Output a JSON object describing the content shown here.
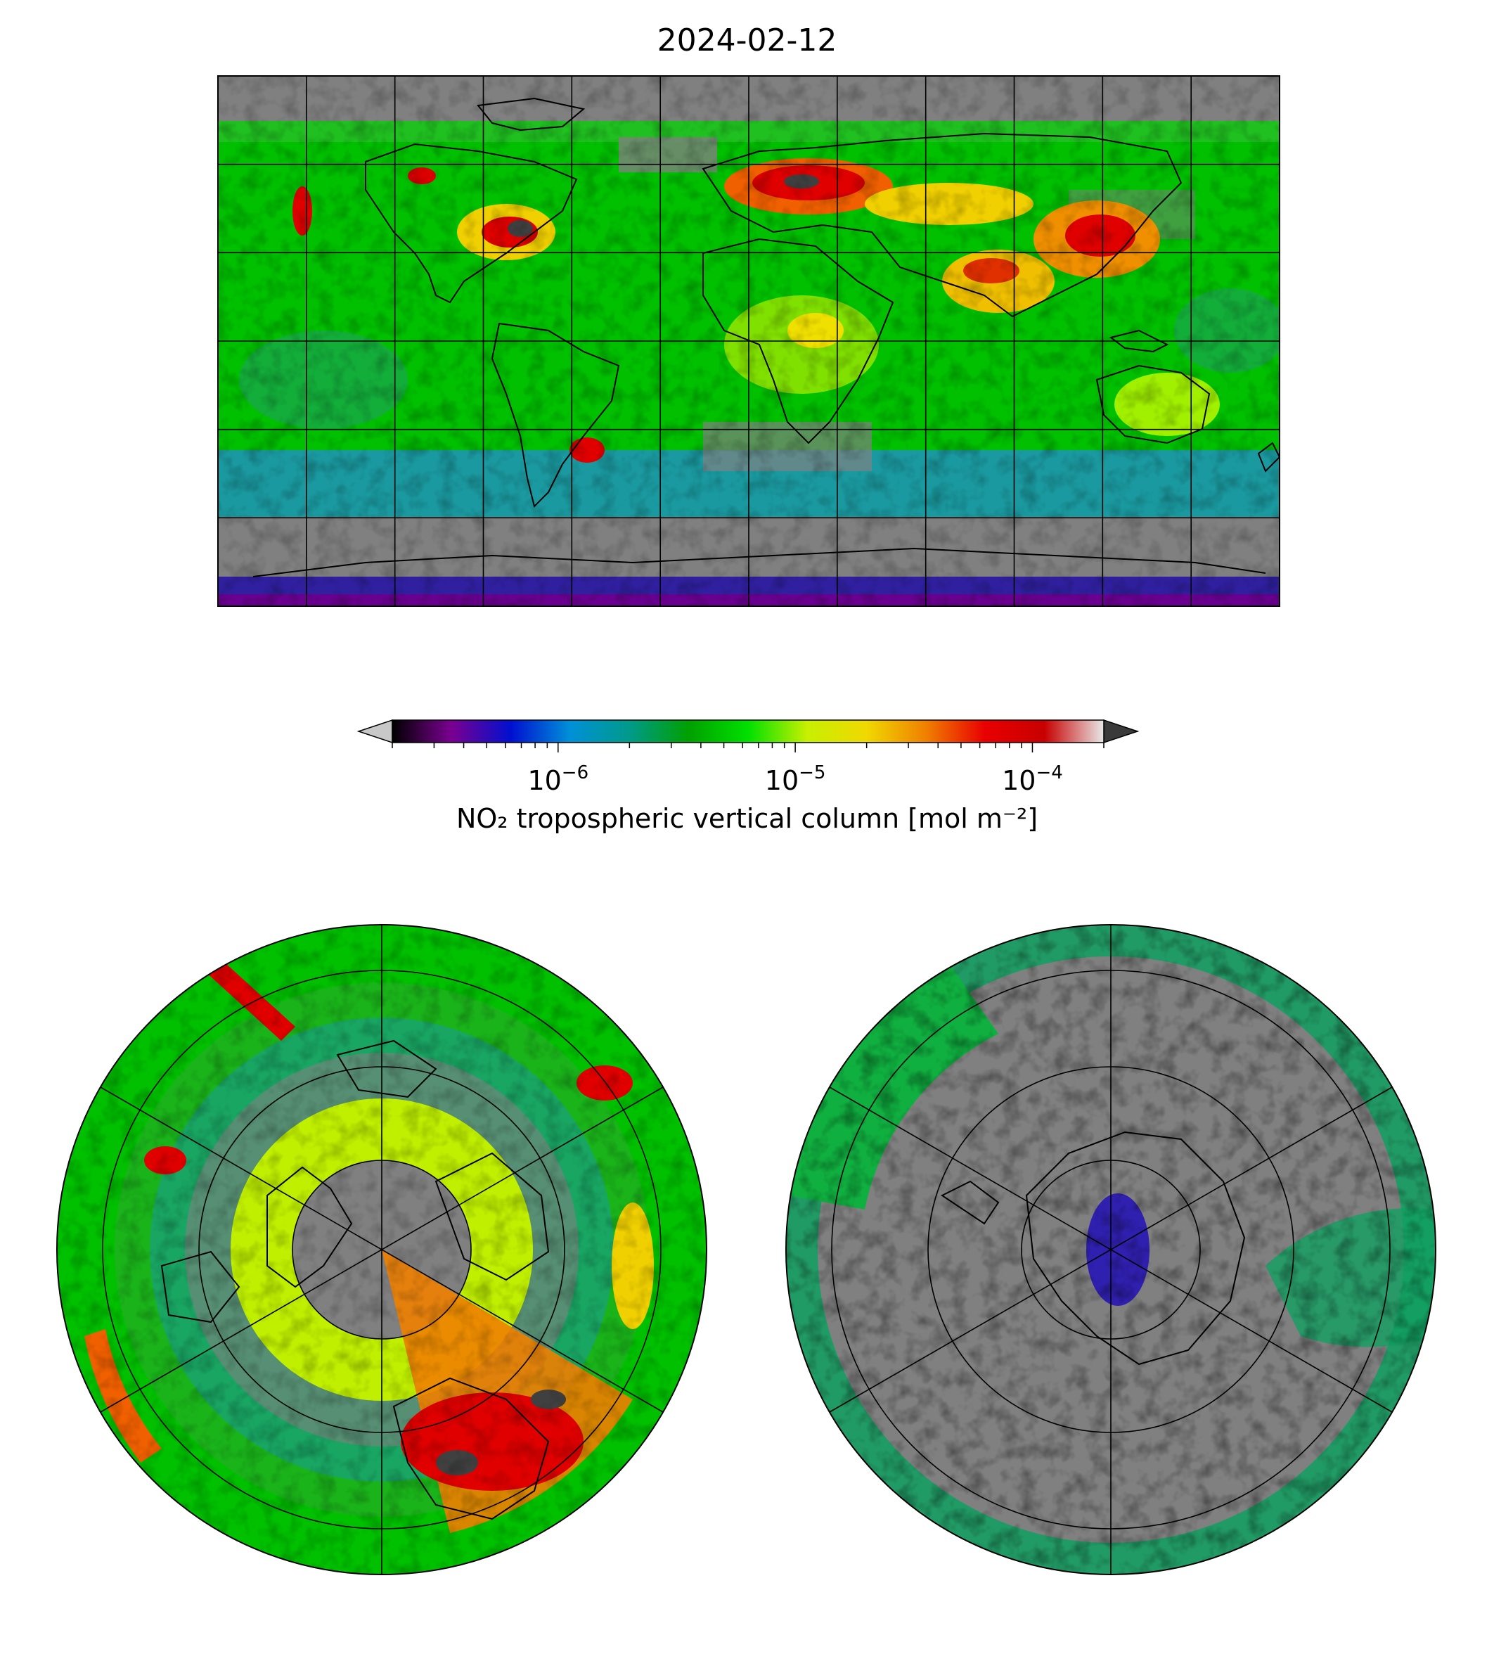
{
  "figure": {
    "title": "2024-02-12",
    "colorbar": {
      "label": "NO₂ tropospheric vertical column [mol m⁻²]",
      "scale": "log",
      "range": [
        2e-07,
        0.0002
      ],
      "extend": "both",
      "under_color": "#c8c8c8",
      "over_color": "#3a3a3a",
      "no_data_color": "#808080",
      "ticks": [
        {
          "value": 1e-06,
          "base": "10",
          "exp": "−6"
        },
        {
          "value": 1e-05,
          "base": "10",
          "exp": "−5"
        },
        {
          "value": 0.0001,
          "base": "10",
          "exp": "−4"
        }
      ],
      "colors": [
        "#000000",
        "#7a0090",
        "#0010d0",
        "#0090d8",
        "#009a8a",
        "#00a000",
        "#00e000",
        "#c8f000",
        "#f0d800",
        "#f08000",
        "#e80000",
        "#c80000",
        "#e8e8e8"
      ]
    },
    "panels": [
      {
        "name": "global-map",
        "projection": "plate-carree"
      },
      {
        "name": "north-polar-map",
        "projection": "north-polar-stereographic"
      },
      {
        "name": "south-polar-map",
        "projection": "south-polar-stereographic"
      }
    ]
  }
}
